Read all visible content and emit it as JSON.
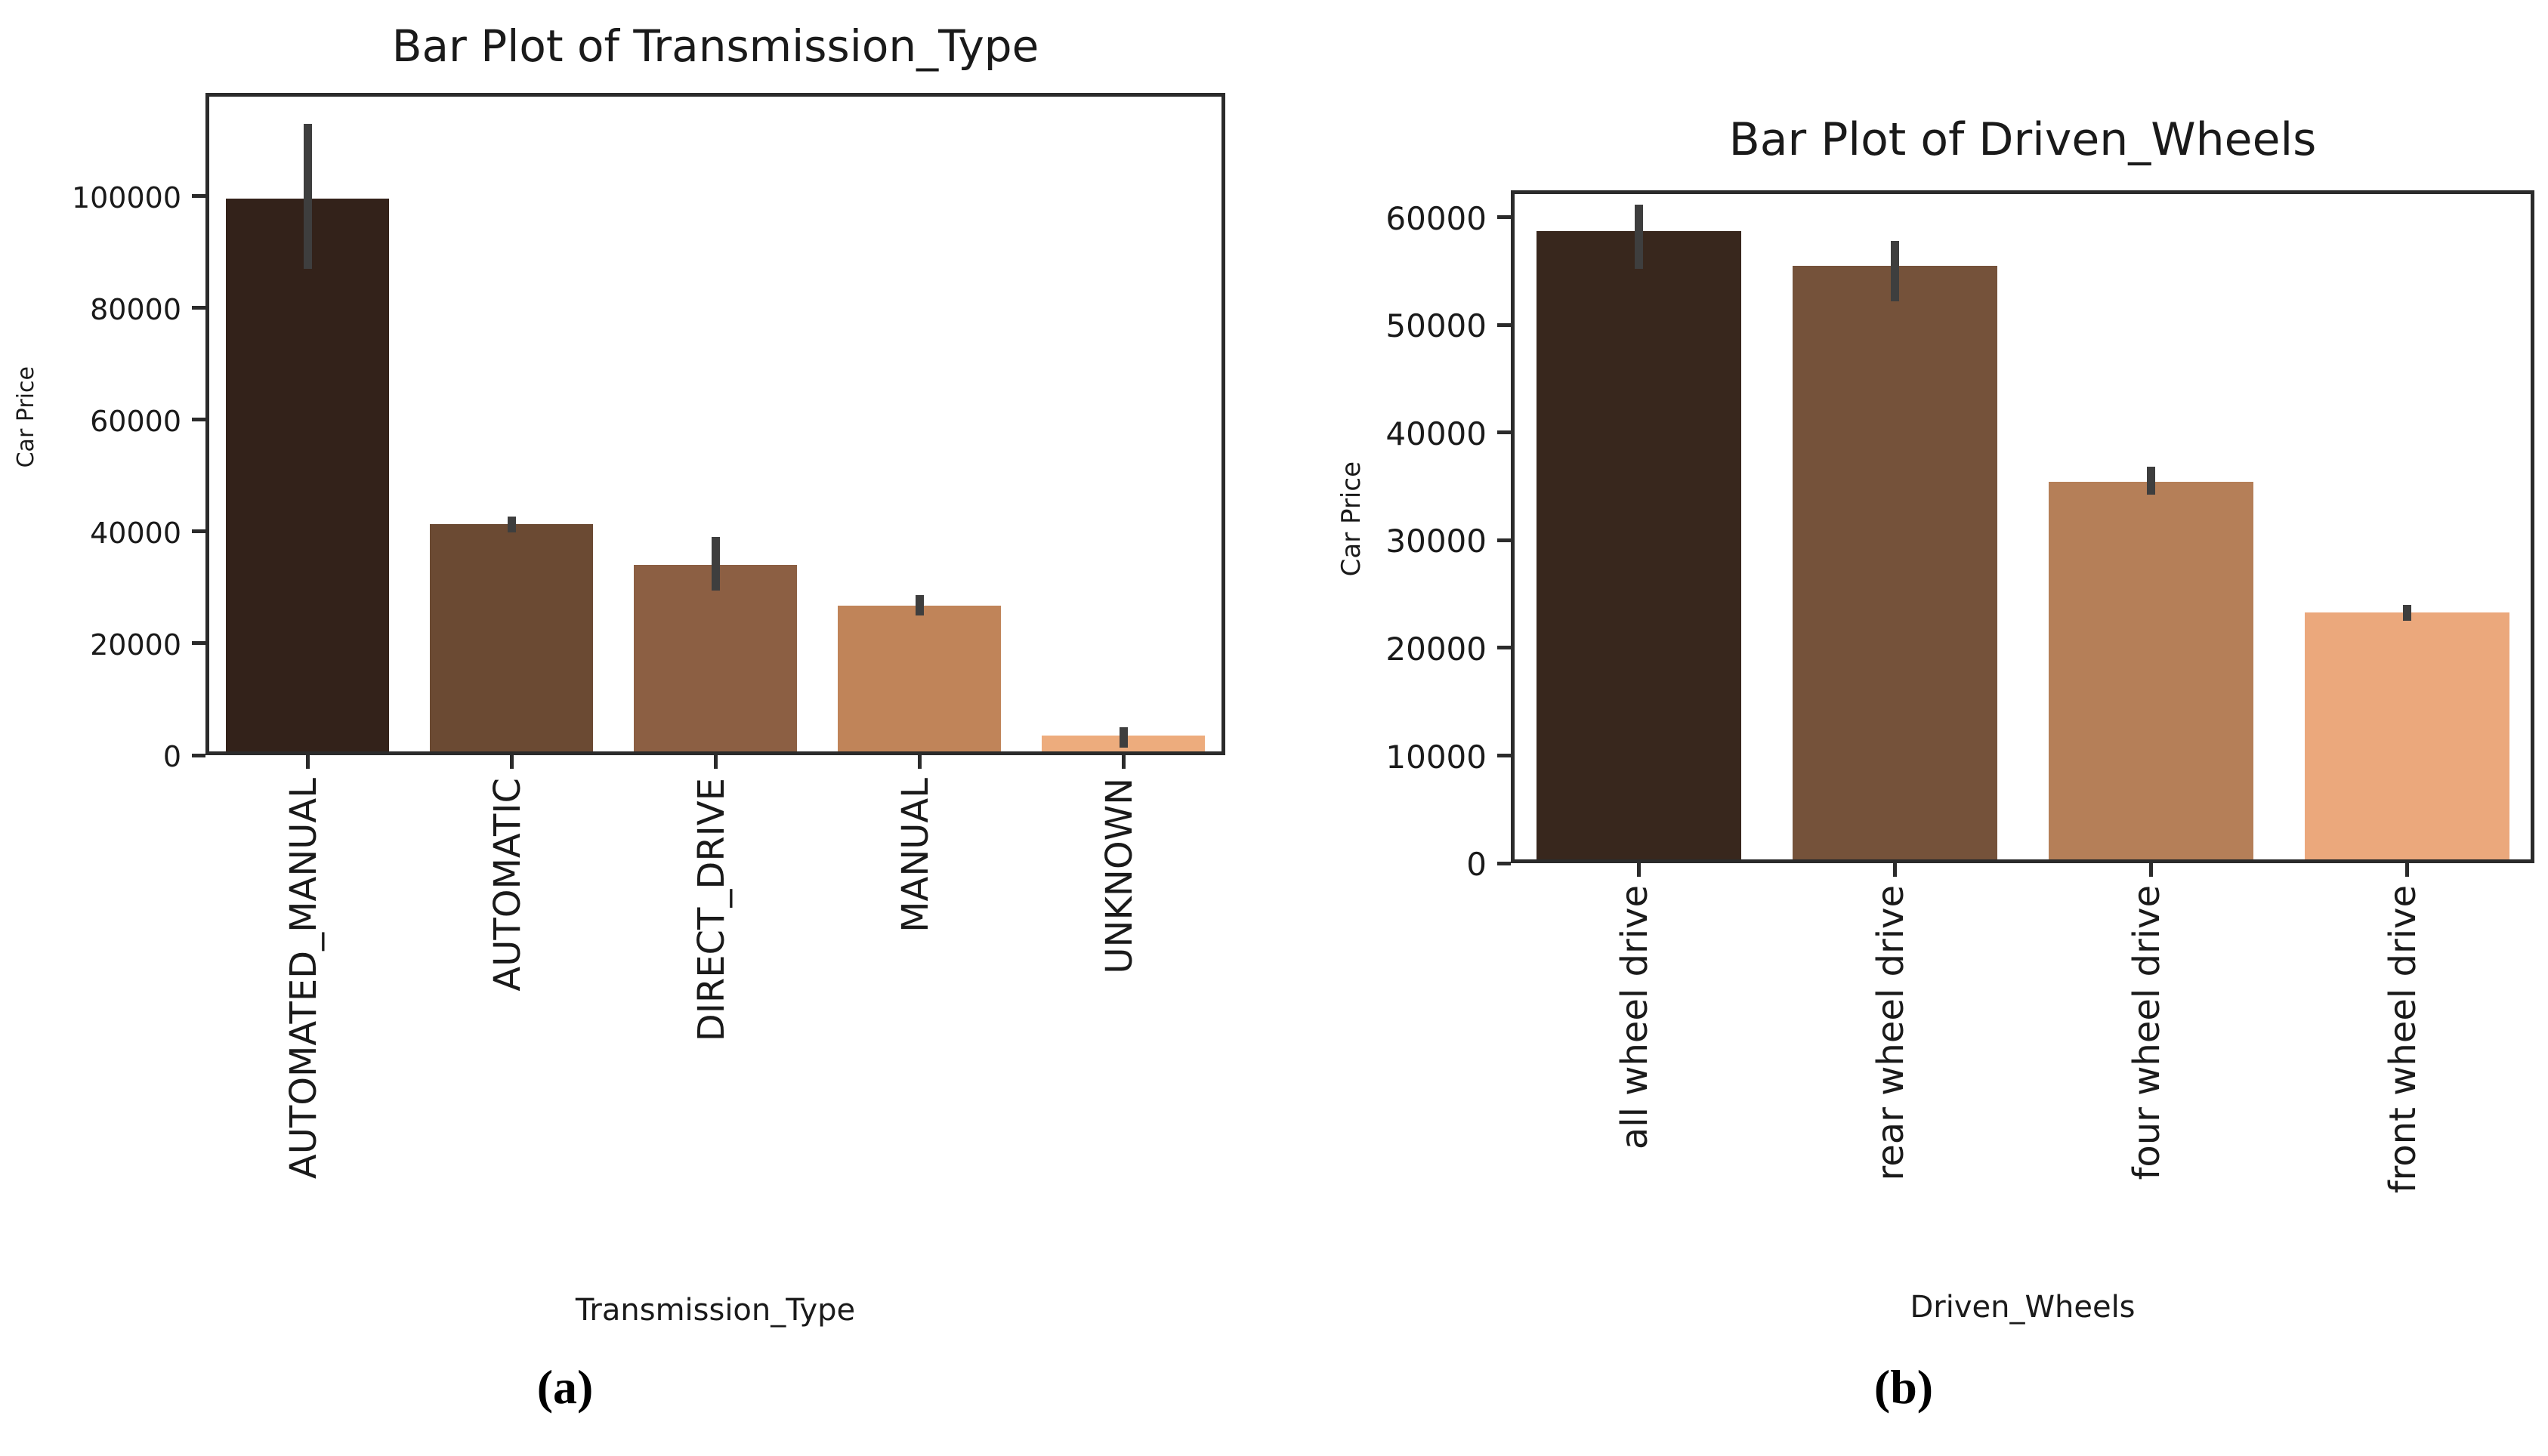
{
  "figure": {
    "background": "#ffffff",
    "spine_color": "#2b2b2b",
    "text_color": "#1a1a1a",
    "error_bar_color": "#3e3e3e"
  },
  "chart_data": [
    {
      "type": "bar",
      "title": "Bar Plot of Transmission_Type",
      "xlabel": "Transmission_Type",
      "ylabel": "Car Price",
      "caption": "(a)",
      "categories": [
        "AUTOMATED_MANUAL",
        "AUTOMATIC",
        "DIRECT_DRIVE",
        "MANUAL",
        "UNKNOWN"
      ],
      "values": [
        99600,
        41400,
        34000,
        26800,
        3500
      ],
      "error_low": [
        87000,
        39900,
        29500,
        25000,
        1400
      ],
      "error_high": [
        113000,
        42700,
        39000,
        28700,
        5000
      ],
      "bar_colors": [
        "#33221a",
        "#6b4a33",
        "#8c5f43",
        "#c08459",
        "#edac7d"
      ],
      "ylim": [
        0,
        118500
      ],
      "yticks": [
        0,
        20000,
        40000,
        60000,
        80000,
        100000
      ],
      "xtick_rotation": 90,
      "grid": false,
      "legend": "none"
    },
    {
      "type": "bar",
      "title": "Bar Plot of Driven_Wheels",
      "xlabel": "Driven_Wheels",
      "ylabel": "Car Price",
      "caption": "(b)",
      "categories": [
        "all wheel drive",
        "rear wheel drive",
        "four wheel drive",
        "front wheel drive"
      ],
      "values": [
        58700,
        55500,
        35400,
        23300
      ],
      "error_low": [
        55200,
        52200,
        34200,
        22500
      ],
      "error_high": [
        61200,
        57800,
        36800,
        24000
      ],
      "bar_colors": [
        "#38271d",
        "#75523a",
        "#b57f58",
        "#eba87c"
      ],
      "ylim": [
        0,
        62500
      ],
      "yticks": [
        0,
        10000,
        20000,
        30000,
        40000,
        50000,
        60000
      ],
      "xtick_rotation": 90,
      "grid": false,
      "legend": "none"
    }
  ]
}
